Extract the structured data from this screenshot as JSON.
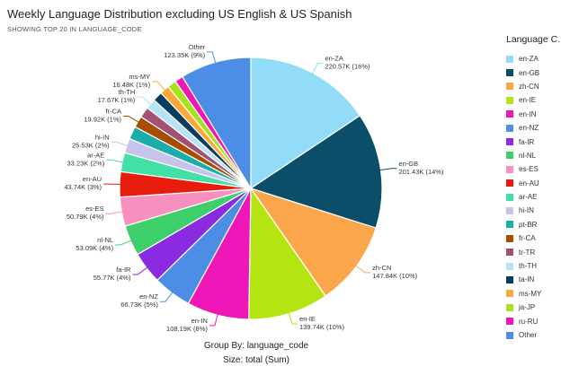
{
  "header": {
    "title": "Weekly Language Distribution excluding US English & US Spanish",
    "subtitle": "SHOWING TOP 20 IN LANGUAGE_CODE"
  },
  "legend": {
    "title": "Language C..."
  },
  "footer": {
    "group_by": "Group By: language_code",
    "size": "Size: total (Sum)"
  },
  "chart_data": {
    "type": "pie",
    "legend_position": "right",
    "slices": [
      {
        "name": "en-ZA",
        "value_label": "220.57K (16%)",
        "value": 220570,
        "color": "#92dcf7",
        "label": "en-ZA\n220.57K (16%)"
      },
      {
        "name": "en-GB",
        "value_label": "201.43K (14%)",
        "value": 201430,
        "color": "#0b4e6a",
        "label": "en-GB\n201.43K (14%)"
      },
      {
        "name": "zh-CN",
        "value_label": "147.84K (10%)",
        "value": 147840,
        "color": "#fca64b",
        "label": "zh-CN\n147.84K (10%)"
      },
      {
        "name": "en-IE",
        "value_label": "139.74K (10%)",
        "value": 139740,
        "color": "#b4e513",
        "label": "en-IE\n139.74K (10%)"
      },
      {
        "name": "en-IN",
        "value_label": "108.19K (8%)",
        "value": 108190,
        "color": "#ef17b8",
        "label": "en-IN\n108.19K (8%)"
      },
      {
        "name": "en-NZ",
        "value_label": "66.73K (5%)",
        "value": 66730,
        "color": "#4c8ee6",
        "label": "en-NZ\n66.73K (5%)"
      },
      {
        "name": "fa-IR",
        "value_label": "55.77K (4%)",
        "value": 55770,
        "color": "#8a2be2",
        "label": "fa-IR\n55.77K (4%)"
      },
      {
        "name": "nl-NL",
        "value_label": "53.09K (4%)",
        "value": 53090,
        "color": "#3dcf6a",
        "label": "nl-NL\n53.09K (4%)"
      },
      {
        "name": "es-ES",
        "value_label": "50.79K (4%)",
        "value": 50790,
        "color": "#f78fbf",
        "label": "es-ES\n50.79K (4%)"
      },
      {
        "name": "en-AU",
        "value_label": "43.74K (3%)",
        "value": 43740,
        "color": "#e81c0e",
        "label": "en-AU\n43.74K (3%)"
      },
      {
        "name": "ar-AE",
        "value_label": "33.23K (2%)",
        "value": 33230,
        "color": "#40e0a6",
        "label": "ar-AE\n33.23K (2%)"
      },
      {
        "name": "hi-IN",
        "value_label": "25.53K (2%)",
        "value": 25530,
        "color": "#c7c3ea",
        "label": "hi-IN\n25.53K (2%)"
      },
      {
        "name": "pt-BR",
        "value_label": "",
        "value": 22500,
        "color": "#1aadaa",
        "label": ""
      },
      {
        "name": "fr-CA",
        "value_label": "19.92K (1%)",
        "value": 19920,
        "color": "#a84c00",
        "label": "fr-CA\n19.92K (1%)"
      },
      {
        "name": "tr-TR",
        "value_label": "",
        "value": 18800,
        "color": "#a45073",
        "label": ""
      },
      {
        "name": "th-TH",
        "value_label": "17.67K (1%)",
        "value": 17670,
        "color": "#b6e3f5",
        "label": "th-TH\n17.67K (1%)"
      },
      {
        "name": "ta-IN",
        "value_label": "",
        "value": 17000,
        "color": "#0b3d5e",
        "label": ""
      },
      {
        "name": "ms-MY",
        "value_label": "16.48K (1%)",
        "value": 16480,
        "color": "#f9a93a",
        "label": "ms-MY\n16.48K (1%)"
      },
      {
        "name": "ja-JP",
        "value_label": "",
        "value": 15200,
        "color": "#a9e21c",
        "label": ""
      },
      {
        "name": "ru-RU",
        "value_label": "",
        "value": 14500,
        "color": "#ef17b8",
        "label": ""
      },
      {
        "name": "Other",
        "value_label": "123.35K (9%)",
        "value": 123350,
        "color": "#4c8ee6",
        "label": "Other\n123.35K (9%)"
      }
    ]
  }
}
